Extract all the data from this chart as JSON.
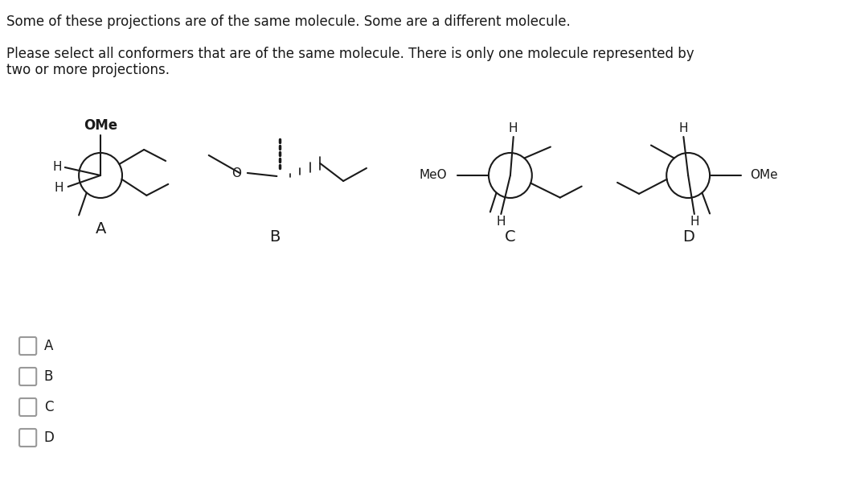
{
  "title_line1": "Some of these projections are of the same molecule. Some are a different molecule.",
  "title_line2": "Please select all conformers that are of the same molecule. There is only one molecule represented by\ntwo or more projections.",
  "bg_color": "#ffffff",
  "text_color": "#1a1a1a",
  "checkbox_color": "#999999",
  "molecule_labels": [
    "A",
    "B",
    "C",
    "D"
  ],
  "checkbox_labels": [
    "A",
    "B",
    "C",
    "D"
  ],
  "font_size_title": 12,
  "font_size_label": 13,
  "font_size_atom": 11,
  "font_size_checkbox_label": 12
}
